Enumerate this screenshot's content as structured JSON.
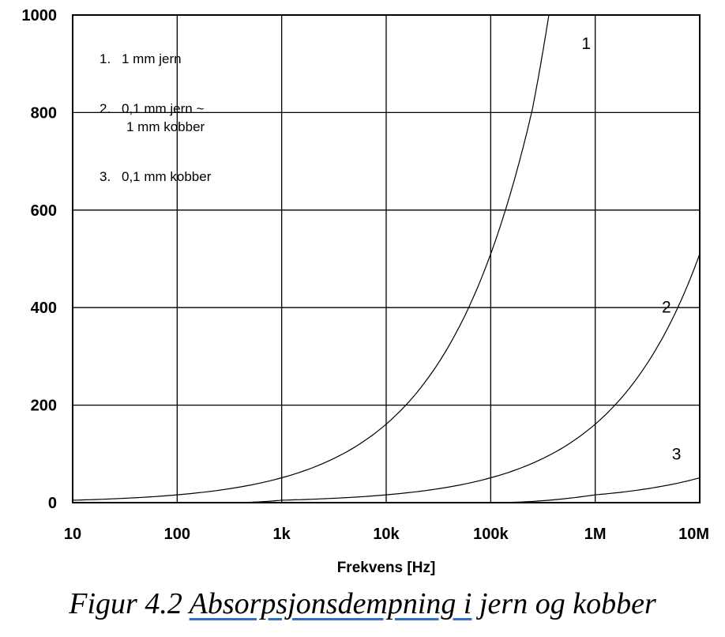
{
  "chart_data": {
    "type": "line",
    "x_scale": "log",
    "xlim": [
      10,
      10000000
    ],
    "ylim": [
      0,
      1000
    ],
    "xlabel": "Frekvens [Hz]",
    "ylabel": "",
    "grid": true,
    "x_ticks": [
      {
        "value": 10,
        "label": "10"
      },
      {
        "value": 100,
        "label": "100"
      },
      {
        "value": 1000,
        "label": "1k"
      },
      {
        "value": 10000,
        "label": "10k"
      },
      {
        "value": 100000,
        "label": "100k"
      },
      {
        "value": 1000000,
        "label": "1M"
      },
      {
        "value": 10000000,
        "label": "10M"
      }
    ],
    "y_ticks": [
      {
        "value": 0,
        "label": "0"
      },
      {
        "value": 200,
        "label": "200"
      },
      {
        "value": 400,
        "label": "400"
      },
      {
        "value": 600,
        "label": "600"
      },
      {
        "value": 800,
        "label": "800"
      },
      {
        "value": 1000,
        "label": "1000"
      }
    ],
    "legend": {
      "placement": "top-left",
      "items": [
        {
          "number": "1.",
          "lines": [
            "1 mm jern"
          ]
        },
        {
          "number": "2.",
          "lines": [
            "0,1 mm jern ~",
            "1 mm kobber"
          ]
        },
        {
          "number": "3.",
          "lines": [
            "0,1 mm kobber"
          ]
        }
      ]
    },
    "series": [
      {
        "label": "1",
        "points": [
          [
            10,
            5
          ],
          [
            100,
            16
          ],
          [
            1000,
            51
          ],
          [
            10000,
            161
          ],
          [
            100000,
            510
          ],
          [
            150000,
            625
          ],
          [
            250000,
            806
          ],
          [
            360000,
            1000
          ]
        ]
      },
      {
        "label": "2",
        "points": [
          [
            300,
            0
          ],
          [
            1000,
            5
          ],
          [
            10000,
            16
          ],
          [
            100000,
            51
          ],
          [
            1000000,
            161
          ],
          [
            5000000,
            360
          ],
          [
            10000000,
            510
          ]
        ]
      },
      {
        "label": "3",
        "points": [
          [
            100000,
            0
          ],
          [
            1000000,
            16
          ],
          [
            5000000,
            36
          ],
          [
            10000000,
            51
          ]
        ]
      }
    ]
  },
  "caption": {
    "prefix": "Figur 4.2 ",
    "link": "Absorpsjonsdempning  i",
    "suffix": " jern og kobber"
  }
}
